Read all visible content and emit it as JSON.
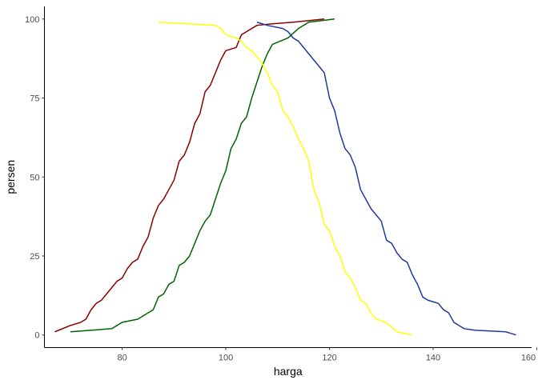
{
  "chart_data": {
    "type": "line",
    "title": "",
    "xlabel": "harga",
    "ylabel": "persen",
    "xlim": [
      65,
      159
    ],
    "ylim": [
      -4,
      104
    ],
    "x_ticks": [
      80,
      100,
      120,
      140,
      160
    ],
    "y_ticks": [
      0,
      25,
      50,
      75,
      100
    ],
    "grid": false,
    "legend": "none",
    "series": [
      {
        "color": "#8B0000",
        "x": [
          67,
          70,
          72,
          73,
          74,
          75,
          76,
          77,
          78,
          79,
          80,
          81,
          82,
          83,
          84,
          85,
          86,
          87,
          88,
          89,
          90,
          91,
          92,
          93,
          94,
          95,
          96,
          97,
          98,
          99,
          100,
          102,
          103,
          106,
          109,
          113,
          119
        ],
        "y": [
          1,
          3,
          4,
          5,
          8,
          10,
          11,
          13,
          15,
          17,
          18,
          21,
          23,
          24,
          28,
          31,
          37,
          41,
          43,
          46,
          49,
          55,
          57,
          61,
          67,
          70,
          77,
          79,
          83,
          87,
          90,
          91,
          95,
          98,
          98.5,
          99,
          100
        ]
      },
      {
        "color": "#006400",
        "x": [
          70,
          78,
          80,
          83,
          86,
          87,
          88,
          89,
          90,
          91,
          92,
          93,
          94,
          95,
          96,
          97,
          98,
          99,
          100,
          101,
          102,
          103,
          104,
          105,
          106,
          107,
          108,
          109,
          112,
          114,
          116,
          121
        ],
        "y": [
          1,
          2,
          4,
          5,
          8,
          12,
          13,
          16,
          17,
          22,
          23,
          25,
          29,
          33,
          36,
          38,
          43,
          48,
          52,
          59,
          62,
          67,
          69,
          75,
          80,
          85,
          89,
          92,
          94,
          97,
          99,
          100
        ]
      },
      {
        "color": "#FFFF00",
        "x": [
          87,
          98,
          99,
          100,
          102,
          103,
          104,
          105,
          106,
          107,
          108,
          109,
          110,
          111,
          112,
          113,
          114,
          115,
          116,
          117,
          118,
          119,
          120,
          121,
          122,
          123,
          124,
          125,
          126,
          127,
          128,
          129,
          130,
          131,
          132,
          133,
          136
        ],
        "y": [
          99,
          98,
          97,
          95,
          94,
          93,
          91,
          90,
          88,
          86,
          83,
          79,
          77,
          71,
          69,
          66,
          62,
          59,
          55,
          46,
          42,
          35,
          33,
          28,
          25,
          20,
          18,
          15,
          11,
          10,
          7,
          5,
          4.5,
          3.8,
          2.5,
          1,
          0
        ]
      },
      {
        "color": "#1f3a9e",
        "x": [
          106,
          108,
          111,
          112,
          113,
          114,
          115,
          116,
          117,
          118,
          119,
          120,
          121,
          122,
          123,
          124,
          125,
          126,
          127,
          128,
          129,
          130,
          131,
          132,
          133,
          134,
          135,
          136,
          137,
          138,
          139,
          140,
          141,
          142,
          143,
          144,
          145,
          146,
          148,
          154,
          156
        ],
        "y": [
          99,
          98,
          97,
          96,
          94,
          93,
          91,
          89,
          87,
          85,
          83,
          75,
          71,
          64,
          59,
          57,
          53,
          46,
          43,
          40,
          38,
          36,
          30,
          29,
          26,
          24,
          23,
          19,
          16,
          12,
          11,
          10.5,
          10,
          8,
          7,
          4,
          3,
          2,
          1.5,
          1,
          0
        ]
      }
    ]
  }
}
